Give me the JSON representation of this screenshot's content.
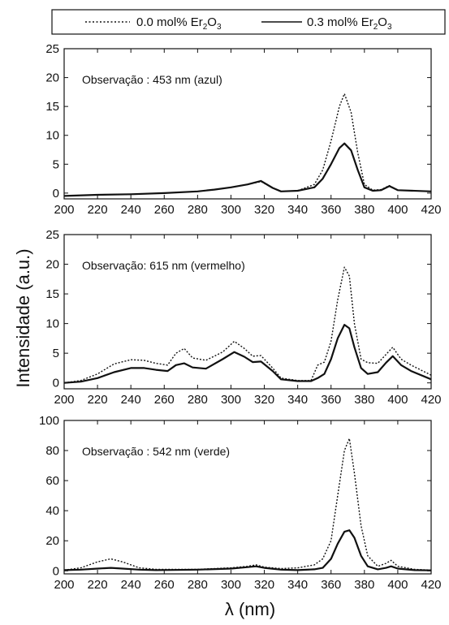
{
  "legend": {
    "items": [
      {
        "style": "dotted",
        "text": "0.0 mol% Er",
        "sub1": "2",
        "mid": "O",
        "sub2": "3"
      },
      {
        "style": "solid",
        "text": "0.3 mol% Er",
        "sub1": "2",
        "mid": "O",
        "sub2": "3"
      }
    ]
  },
  "shared_ylabel": "Intensidade (a.u.)",
  "shared_xlabel": "λ (nm)",
  "chart_data": [
    {
      "type": "line",
      "annotation": "Observação : 453 nm (azul)",
      "xlim": [
        200,
        420
      ],
      "ylim": [
        -1,
        25
      ],
      "xticks": [
        200,
        220,
        240,
        260,
        280,
        300,
        320,
        340,
        360,
        380,
        400,
        420
      ],
      "yticks": [
        0,
        5,
        10,
        15,
        20,
        25
      ],
      "series": [
        {
          "name": "0.0 mol% Er2O3",
          "style": "dotted",
          "x": [
            200,
            220,
            240,
            260,
            280,
            290,
            300,
            310,
            318,
            325,
            330,
            340,
            350,
            355,
            360,
            365,
            368,
            372,
            376,
            380,
            385,
            390,
            395,
            400,
            420
          ],
          "y": [
            -0.5,
            -0.3,
            -0.2,
            0,
            0.3,
            0.6,
            1.0,
            1.5,
            2.0,
            0.9,
            0.3,
            0.4,
            1.5,
            4,
            9,
            15,
            17.2,
            14,
            7,
            1.5,
            0.5,
            0.6,
            1.3,
            0.5,
            0.3
          ]
        },
        {
          "name": "0.3 mol% Er2O3",
          "style": "solid",
          "x": [
            200,
            220,
            240,
            260,
            280,
            290,
            300,
            310,
            318,
            325,
            330,
            340,
            350,
            355,
            360,
            365,
            368,
            372,
            376,
            380,
            385,
            390,
            395,
            400,
            420
          ],
          "y": [
            -0.5,
            -0.3,
            -0.2,
            0,
            0.3,
            0.6,
            1.0,
            1.5,
            2.1,
            0.9,
            0.3,
            0.4,
            1.0,
            2.5,
            5,
            7.8,
            8.6,
            7.4,
            4,
            1,
            0.4,
            0.5,
            1.2,
            0.5,
            0.3
          ]
        }
      ]
    },
    {
      "type": "line",
      "annotation": "Observação: 615 nm (vermelho)",
      "xlim": [
        200,
        420
      ],
      "ylim": [
        -1,
        25
      ],
      "xticks": [
        200,
        220,
        240,
        260,
        280,
        300,
        320,
        340,
        360,
        380,
        400,
        420
      ],
      "yticks": [
        0,
        5,
        10,
        15,
        20,
        25
      ],
      "series": [
        {
          "name": "0.0 mol% Er2O3",
          "style": "dotted",
          "x": [
            200,
            210,
            220,
            230,
            240,
            248,
            255,
            262,
            267,
            272,
            277,
            285,
            295,
            302,
            308,
            313,
            318,
            325,
            330,
            340,
            348,
            352,
            356,
            360,
            364,
            368,
            371,
            374,
            378,
            382,
            388,
            393,
            397,
            402,
            408,
            420
          ],
          "y": [
            0,
            0.4,
            1.5,
            3.2,
            3.9,
            3.8,
            3.3,
            3.0,
            5.0,
            5.8,
            4.2,
            3.8,
            5.2,
            7.0,
            5.8,
            4.5,
            4.6,
            2.5,
            0.8,
            0.4,
            0.4,
            3.0,
            3.5,
            7,
            14,
            19.5,
            18,
            10,
            4,
            3.4,
            3.3,
            4.8,
            6.0,
            4.0,
            3.0,
            1.3
          ]
        },
        {
          "name": "0.3 mol% Er2O3",
          "style": "solid",
          "x": [
            200,
            210,
            220,
            230,
            240,
            248,
            255,
            262,
            267,
            272,
            277,
            285,
            295,
            302,
            308,
            313,
            318,
            325,
            330,
            340,
            348,
            352,
            356,
            360,
            364,
            368,
            371,
            374,
            378,
            382,
            388,
            393,
            397,
            402,
            408,
            420
          ],
          "y": [
            0,
            0.2,
            0.8,
            1.8,
            2.5,
            2.5,
            2.2,
            2.0,
            3.0,
            3.3,
            2.6,
            2.4,
            4.0,
            5.2,
            4.4,
            3.5,
            3.6,
            2.0,
            0.6,
            0.3,
            0.3,
            0.8,
            1.5,
            4,
            7.5,
            9.8,
            9.2,
            6,
            2.5,
            1.5,
            1.8,
            3.4,
            4.5,
            3.0,
            2.0,
            0.6
          ]
        }
      ]
    },
    {
      "type": "line",
      "annotation": "Observação : 542 nm (verde)",
      "xlim": [
        200,
        420
      ],
      "ylim": [
        -2,
        100
      ],
      "xticks": [
        200,
        220,
        240,
        260,
        280,
        300,
        320,
        340,
        360,
        380,
        400,
        420
      ],
      "yticks": [
        0,
        20,
        40,
        60,
        80,
        100
      ],
      "series": [
        {
          "name": "0.0 mol% Er2O3",
          "style": "dotted",
          "x": [
            200,
            210,
            220,
            228,
            235,
            245,
            255,
            265,
            280,
            300,
            310,
            315,
            320,
            330,
            340,
            350,
            355,
            360,
            364,
            368,
            371,
            374,
            378,
            382,
            388,
            393,
            396,
            400,
            410,
            420
          ],
          "y": [
            0.5,
            2,
            6,
            8,
            6,
            2,
            1,
            1,
            1,
            2,
            3,
            4,
            2.5,
            1.5,
            2,
            4,
            8,
            20,
            50,
            80,
            88,
            65,
            30,
            10,
            3,
            5,
            7,
            3,
            1,
            0.5
          ]
        },
        {
          "name": "0.3 mol% Er2O3",
          "style": "solid",
          "x": [
            200,
            210,
            220,
            228,
            235,
            245,
            255,
            265,
            280,
            300,
            310,
            315,
            320,
            330,
            340,
            350,
            355,
            360,
            364,
            368,
            371,
            374,
            378,
            382,
            388,
            393,
            396,
            400,
            410,
            420
          ],
          "y": [
            0.5,
            0.8,
            1.5,
            2,
            1.5,
            0.8,
            0.5,
            0.6,
            0.8,
            1.5,
            2.5,
            3,
            2,
            0.8,
            0.5,
            1,
            2,
            8,
            18,
            26,
            27,
            22,
            10,
            3,
            1,
            2,
            3,
            1.5,
            0.5,
            0.3
          ]
        }
      ]
    }
  ]
}
